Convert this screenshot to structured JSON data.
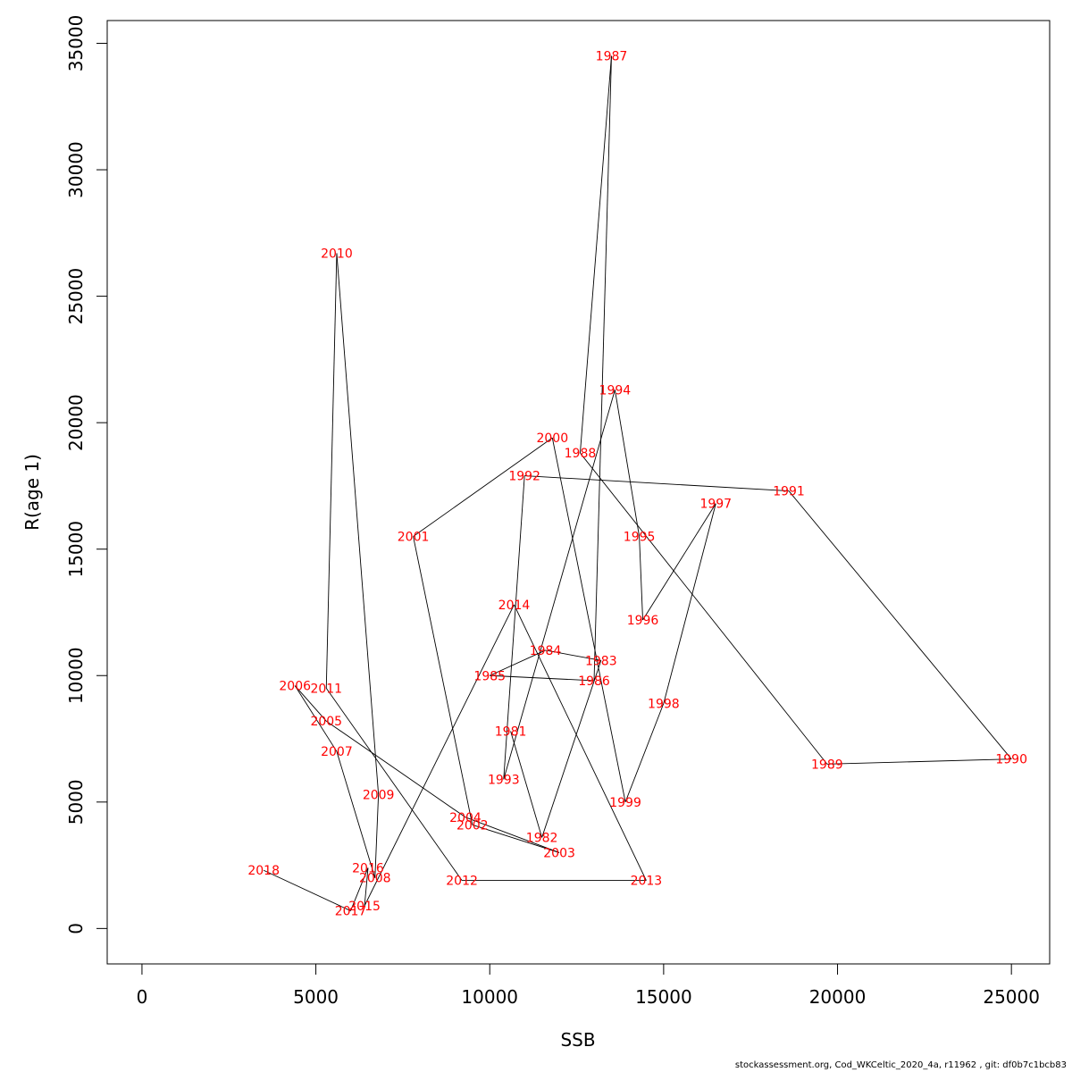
{
  "chart_data": {
    "type": "line",
    "title": "",
    "xlabel": "SSB",
    "ylabel": "R(age 1)",
    "xlim": [
      -1000,
      26100
    ],
    "ylim": [
      -1400,
      35900
    ],
    "x_ticks": [
      0,
      5000,
      10000,
      15000,
      20000,
      25000
    ],
    "y_ticks": [
      0,
      5000,
      10000,
      15000,
      20000,
      25000,
      30000,
      35000
    ],
    "grid": false,
    "line_color": "#000000",
    "label_color": "#ff0000",
    "points": [
      {
        "label": "1981",
        "x": 10600,
        "y": 7800
      },
      {
        "label": "1982",
        "x": 11500,
        "y": 3600
      },
      {
        "label": "1983",
        "x": 13200,
        "y": 10600
      },
      {
        "label": "1984",
        "x": 11600,
        "y": 11000
      },
      {
        "label": "1985",
        "x": 10000,
        "y": 10000
      },
      {
        "label": "1986",
        "x": 13000,
        "y": 9800
      },
      {
        "label": "1987",
        "x": 13500,
        "y": 34500
      },
      {
        "label": "1988",
        "x": 12600,
        "y": 18800
      },
      {
        "label": "1989",
        "x": 19700,
        "y": 6500
      },
      {
        "label": "1990",
        "x": 25000,
        "y": 6700
      },
      {
        "label": "1991",
        "x": 18600,
        "y": 17300
      },
      {
        "label": "1992",
        "x": 11000,
        "y": 17900
      },
      {
        "label": "1993",
        "x": 10400,
        "y": 5900
      },
      {
        "label": "1994",
        "x": 13600,
        "y": 21300
      },
      {
        "label": "1995",
        "x": 14300,
        "y": 15500
      },
      {
        "label": "1996",
        "x": 14400,
        "y": 12200
      },
      {
        "label": "1997",
        "x": 16500,
        "y": 16800
      },
      {
        "label": "1998",
        "x": 15000,
        "y": 8900
      },
      {
        "label": "1999",
        "x": 13900,
        "y": 5000
      },
      {
        "label": "2000",
        "x": 11800,
        "y": 19400
      },
      {
        "label": "2001",
        "x": 7800,
        "y": 15500
      },
      {
        "label": "2002",
        "x": 9500,
        "y": 4100
      },
      {
        "label": "2003",
        "x": 12000,
        "y": 3000
      },
      {
        "label": "2004",
        "x": 9300,
        "y": 4400
      },
      {
        "label": "2005",
        "x": 5300,
        "y": 8200
      },
      {
        "label": "2006",
        "x": 4400,
        "y": 9600
      },
      {
        "label": "2007",
        "x": 5600,
        "y": 7000
      },
      {
        "label": "2008",
        "x": 6700,
        "y": 2000
      },
      {
        "label": "2009",
        "x": 6800,
        "y": 5300
      },
      {
        "label": "2010",
        "x": 5600,
        "y": 26700
      },
      {
        "label": "2011",
        "x": 5300,
        "y": 9500
      },
      {
        "label": "2012",
        "x": 9200,
        "y": 1900
      },
      {
        "label": "2013",
        "x": 14500,
        "y": 1900
      },
      {
        "label": "2014",
        "x": 10700,
        "y": 12800
      },
      {
        "label": "2015",
        "x": 6400,
        "y": 900
      },
      {
        "label": "2016",
        "x": 6500,
        "y": 2400
      },
      {
        "label": "2017",
        "x": 6000,
        "y": 700
      },
      {
        "label": "2018",
        "x": 3500,
        "y": 2300
      }
    ]
  },
  "footer": "stockassessment.org, Cod_WKCeltic_2020_4a, r11962 , git: df0b7c1bcb83"
}
